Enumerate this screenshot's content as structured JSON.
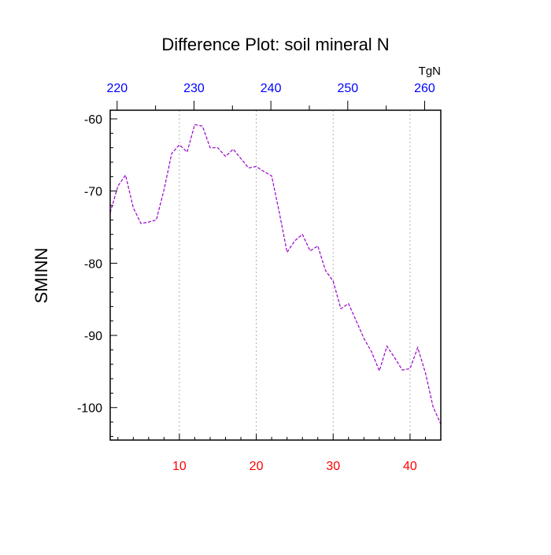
{
  "chart_data": {
    "type": "line",
    "title": "Difference Plot: soil mineral N",
    "xlabel": "",
    "ylabel": "SMINN",
    "top_axis_unit": "TgN",
    "xlim": [
      1,
      44
    ],
    "ylim": [
      -104.5,
      -58.8
    ],
    "grid": "vertical dotted at bottom major ticks",
    "bottom_ticks": [
      10,
      20,
      30,
      40
    ],
    "bottom_tick_color": "#ff0000",
    "top_ticks": [
      {
        "label": "220",
        "x": 1.9
      },
      {
        "label": "230",
        "x": 11.9
      },
      {
        "label": "240",
        "x": 21.9
      },
      {
        "label": "250",
        "x": 31.9
      },
      {
        "label": "260",
        "x": 41.9
      }
    ],
    "top_tick_color": "#0000ff",
    "y_ticks": [
      -60,
      -70,
      -80,
      -90,
      -100
    ],
    "line_color": "#9900cc",
    "line_dash": "dashed",
    "series": [
      {
        "x": [
          1,
          2,
          3,
          4,
          5,
          6,
          7,
          8,
          9,
          10,
          11,
          12,
          13,
          14,
          15,
          16,
          17,
          18,
          19,
          20,
          21,
          22,
          23,
          24,
          25,
          26,
          27,
          28,
          29,
          30,
          31,
          32,
          33,
          34,
          35,
          36,
          37,
          38,
          39,
          40,
          41,
          42,
          43,
          44
        ],
        "values": [
          -73.0,
          -69.3,
          -67.8,
          -72.3,
          -74.5,
          -74.3,
          -74.0,
          -69.8,
          -64.8,
          -63.6,
          -64.6,
          -60.8,
          -61.0,
          -64.0,
          -64.0,
          -65.2,
          -64.2,
          -65.5,
          -66.8,
          -66.6,
          -67.3,
          -67.9,
          -73.0,
          -78.5,
          -76.9,
          -76.0,
          -78.3,
          -77.6,
          -81.0,
          -82.5,
          -86.3,
          -85.6,
          -88.0,
          -90.4,
          -92.3,
          -94.9,
          -91.5,
          -93.1,
          -94.8,
          -94.6,
          -91.7,
          -95.2,
          -99.9,
          -102.3
        ]
      }
    ]
  }
}
